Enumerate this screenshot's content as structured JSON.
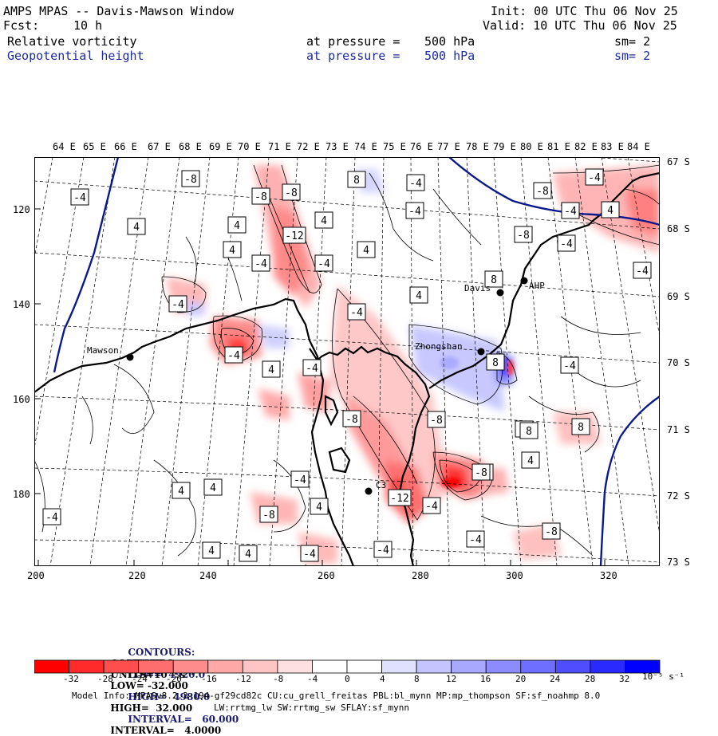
{
  "header": {
    "title": "AMPS MPAS -- Davis-Mawson Window",
    "fcst_label": "Fcst:",
    "fcst_value": "10 h",
    "init": "Init: 00 UTC Thu 06 Nov 25",
    "valid": "Valid: 10 UTC Thu 06 Nov 25"
  },
  "fields": [
    {
      "name": "Relative vorticity",
      "level": "at pressure =",
      "value": "500 hPa",
      "sm": "sm= 2"
    },
    {
      "name": "Geopotential height",
      "level": "at pressure =",
      "value": "500 hPa",
      "sm": "sm= 2"
    }
  ],
  "map": {
    "lon_labels": [
      "64 E",
      "65 E",
      "66 E",
      "67 E",
      "68 E",
      "69 E",
      "70 E",
      "71 E",
      "72 E",
      "73 E",
      "74 E",
      "75 E",
      "76 E",
      "77 E",
      "78 E",
      "79 E",
      "80 E",
      "81 E",
      "82 E",
      "83 E",
      "84 E"
    ],
    "lat_labels": [
      "67 S",
      "68 S",
      "69 S",
      "70 S",
      "71 S",
      "72 S",
      "73 S"
    ],
    "x_ticks": [
      "200",
      "220",
      "240",
      "260",
      "280",
      "300",
      "320"
    ],
    "y_ticks": [
      "120",
      "140",
      "160",
      "180"
    ],
    "stations": [
      {
        "name": "Mawson"
      },
      {
        "name": "Davis"
      },
      {
        "name": "AHP"
      },
      {
        "name": "Zhongshan"
      },
      {
        "name": "C3"
      }
    ],
    "contour_labels": [
      "-8",
      "-4",
      "-8",
      "-8",
      "8",
      "-4",
      "-8",
      "-4",
      "-12",
      "4",
      "4",
      "4",
      "-4",
      "-4",
      "4",
      "-4",
      "-4",
      "4",
      "-4",
      "4",
      "4",
      "-4",
      "8",
      "8",
      "-8",
      "-4",
      "-4",
      "-8",
      "-8",
      "-4",
      "-4",
      "-4",
      "4",
      "-8",
      "8",
      "8",
      "4",
      "-8",
      "8",
      "4",
      "4",
      "4",
      "-4",
      "-4",
      "-12",
      "-4",
      "-8",
      "-8",
      "4",
      "4",
      "-4",
      "-4",
      "-4",
      "-4",
      "-8",
      "-4"
    ]
  },
  "legend": {
    "line1_prefix": "CONTOURS:",
    "line1_units": "UNITS=m",
    "line1_low": "LOW=  4920.0",
    "line1_high": "HIGH=  4980.0",
    "line1_interval": "INTERVAL=   60.000",
    "line2_prefix": "CONTOURS:",
    "line2_units": "UNITS=10⁻⁵ s⁻¹",
    "line2_low": "LOW= -32.000",
    "line2_high": "HIGH=  32.000",
    "line2_interval": "INTERVAL=   4.0000",
    "colorbar_ticks": [
      "-32",
      "-28",
      "-24",
      "-20",
      "-16",
      "-12",
      "-8",
      "-4",
      "0",
      "4",
      "8",
      "12",
      "16",
      "20",
      "24",
      "28",
      "32"
    ],
    "colorbar_unit": "10⁻⁵ s⁻¹",
    "colors": [
      "#ff0000",
      "#ff2a2a",
      "#ff4e4e",
      "#ff6e6e",
      "#ff8c8c",
      "#ffa8a8",
      "#ffc4c4",
      "#ffe0e0",
      "#ffffff",
      "#ffffff",
      "#e0e0ff",
      "#c4c4ff",
      "#a8a8ff",
      "#8c8cff",
      "#6e6eff",
      "#4e4eff",
      "#2a2aff",
      "#0000ff"
    ]
  },
  "footer": {
    "line1": "Model Info: MPASv8.2.3-194-gf29cd82c CU:cu_grell_freitas PBL:bl_mynn MP:mp_thompson SF:sf_noahmp 8.0",
    "line2": "LW:rrtmg_lw SW:rrtmg_sw SFLAY:sf_mynn"
  }
}
